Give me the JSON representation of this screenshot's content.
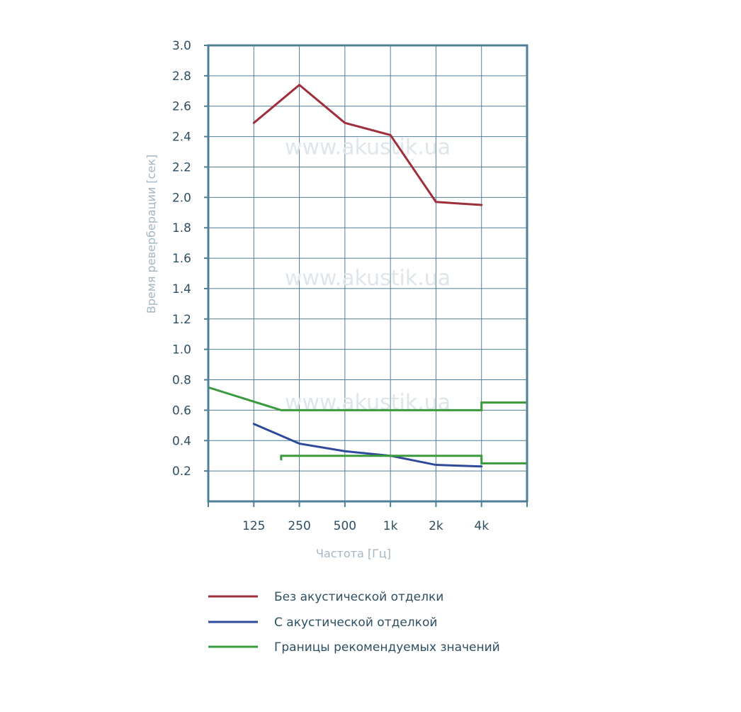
{
  "chart_data": {
    "type": "line",
    "xlabel": "Частота [Гц]",
    "ylabel": "Время реверберации [сек]",
    "x_categories": [
      "125",
      "250",
      "500",
      "1k",
      "2k",
      "4k"
    ],
    "ylim": [
      0,
      3.0
    ],
    "y_ticks": [
      "3.0",
      "2.8",
      "2.6",
      "2.4",
      "2.2",
      "2.0",
      "1.8",
      "1.6",
      "1.4",
      "1.2",
      "1.0",
      "0.8",
      "0.6",
      "0.4",
      "0.2"
    ],
    "grid": true,
    "watermark": "www.akustik.ua",
    "legend_position": "bottom",
    "series": [
      {
        "name": "Без акустической отделки",
        "color": "#9e2f3a",
        "points": [
          [
            "125",
            2.49
          ],
          [
            "250",
            2.74
          ],
          [
            "500",
            2.49
          ],
          [
            "1k",
            2.41
          ],
          [
            "2k",
            1.97
          ],
          [
            "4k",
            1.95
          ]
        ]
      },
      {
        "name": "С акустической отделкой",
        "color": "#2e4a9a",
        "points": [
          [
            "125",
            0.51
          ],
          [
            "250",
            0.38
          ],
          [
            "500",
            0.33
          ],
          [
            "1k",
            0.3
          ],
          [
            "2k",
            0.24
          ],
          [
            "4k",
            0.23
          ]
        ]
      },
      {
        "name": "Границы рекомендуемых значений",
        "color": "#3a9a3d",
        "bounds": {
          "upper": [
            [
              0,
              0.75
            ],
            [
              1.6,
              0.6
            ],
            [
              6.0,
              0.6
            ],
            [
              6.0,
              0.65
            ],
            [
              7.0,
              0.65
            ]
          ],
          "lower": [
            [
              1.6,
              0.27
            ],
            [
              1.6,
              0.3
            ],
            [
              6.0,
              0.3
            ],
            [
              6.0,
              0.25
            ],
            [
              7.0,
              0.25
            ]
          ]
        }
      }
    ]
  }
}
